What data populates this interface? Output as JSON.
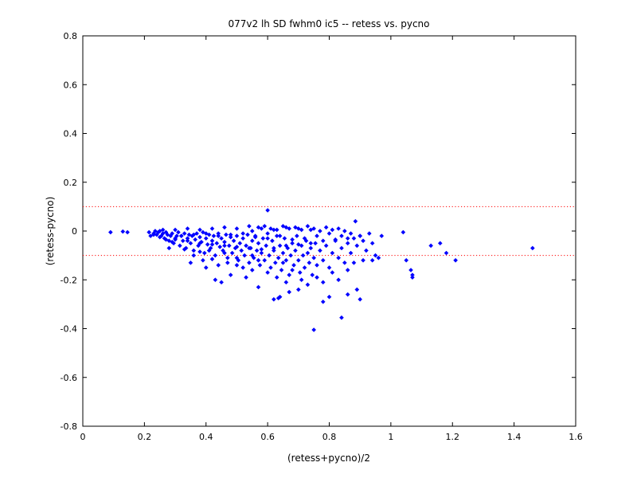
{
  "chart_data": {
    "type": "scatter",
    "title": "077v2 lh SD fwhm0 ic5 -- retess vs. pycno",
    "xlabel": "(retess+pycno)/2",
    "ylabel": "(retess-pycno)",
    "xlim": [
      0,
      1.6
    ],
    "ylim": [
      -0.8,
      0.8
    ],
    "xticks": [
      0,
      0.2,
      0.4,
      0.6,
      0.8,
      1,
      1.2,
      1.4,
      1.6
    ],
    "yticks": [
      -0.8,
      -0.6,
      -0.4,
      -0.2,
      0,
      0.2,
      0.4,
      0.6,
      0.8
    ],
    "xtick_labels": [
      "0",
      "0.2",
      "0.4",
      "0.6",
      "0.8",
      "1",
      "1.2",
      "1.4",
      "1.6"
    ],
    "ytick_labels": [
      "-0.8",
      "-0.6",
      "-0.4",
      "-0.2",
      "0",
      "0.2",
      "0.4",
      "0.6",
      "0.8"
    ],
    "grid": false,
    "reference_lines": [
      0.1,
      -0.1
    ],
    "colors": {
      "points": "#0000ff",
      "reference_lines": "#ff0000",
      "axes": "#000000"
    },
    "series": [
      {
        "marker": "diamond",
        "points": [
          [
            0.09,
            -0.005
          ],
          [
            0.13,
            -0.002
          ],
          [
            0.145,
            -0.005
          ],
          [
            0.215,
            -0.005
          ],
          [
            0.22,
            -0.02
          ],
          [
            0.23,
            -0.01
          ],
          [
            0.235,
            0.0
          ],
          [
            0.24,
            -0.015
          ],
          [
            0.245,
            -0.005
          ],
          [
            0.25,
            0.0
          ],
          [
            0.255,
            -0.02
          ],
          [
            0.26,
            -0.01
          ],
          [
            0.265,
            -0.03
          ],
          [
            0.27,
            -0.005
          ],
          [
            0.275,
            -0.015
          ],
          [
            0.28,
            -0.04
          ],
          [
            0.285,
            -0.02
          ],
          [
            0.29,
            -0.01
          ],
          [
            0.295,
            -0.05
          ],
          [
            0.3,
            -0.03
          ],
          [
            0.305,
            -0.02
          ],
          [
            0.31,
            -0.005
          ],
          [
            0.315,
            -0.06
          ],
          [
            0.32,
            -0.02
          ],
          [
            0.325,
            -0.04
          ],
          [
            0.33,
            -0.01
          ],
          [
            0.335,
            -0.07
          ],
          [
            0.34,
            -0.03
          ],
          [
            0.345,
            -0.015
          ],
          [
            0.35,
            -0.05
          ],
          [
            0.355,
            -0.02
          ],
          [
            0.36,
            -0.08
          ],
          [
            0.365,
            -0.035
          ],
          [
            0.37,
            -0.01
          ],
          [
            0.375,
            -0.06
          ],
          [
            0.38,
            -0.025
          ],
          [
            0.385,
            -0.045
          ],
          [
            0.39,
            -0.005
          ],
          [
            0.395,
            -0.09
          ],
          [
            0.4,
            -0.03
          ],
          [
            0.405,
            -0.055
          ],
          [
            0.41,
            -0.015
          ],
          [
            0.415,
            -0.07
          ],
          [
            0.42,
            -0.04
          ],
          [
            0.425,
            -0.02
          ],
          [
            0.43,
            -0.1
          ],
          [
            0.435,
            -0.05
          ],
          [
            0.44,
            -0.01
          ],
          [
            0.445,
            -0.065
          ],
          [
            0.45,
            -0.03
          ],
          [
            0.455,
            -0.08
          ],
          [
            0.46,
            -0.045
          ],
          [
            0.465,
            -0.015
          ],
          [
            0.47,
            -0.11
          ],
          [
            0.475,
            -0.06
          ],
          [
            0.48,
            -0.025
          ],
          [
            0.485,
            -0.09
          ],
          [
            0.49,
            -0.04
          ],
          [
            0.495,
            -0.07
          ],
          [
            0.5,
            -0.02
          ],
          [
            0.505,
            -0.12
          ],
          [
            0.51,
            -0.05
          ],
          [
            0.515,
            -0.08
          ],
          [
            0.52,
            -0.03
          ],
          [
            0.525,
            -0.1
          ],
          [
            0.53,
            -0.06
          ],
          [
            0.535,
            -0.015
          ],
          [
            0.54,
            -0.13
          ],
          [
            0.545,
            -0.07
          ],
          [
            0.55,
            -0.04
          ],
          [
            0.555,
            -0.11
          ],
          [
            0.56,
            -0.02
          ],
          [
            0.565,
            -0.08
          ],
          [
            0.57,
            -0.05
          ],
          [
            0.575,
            -0.14
          ],
          [
            0.58,
            -0.09
          ],
          [
            0.585,
            -0.03
          ],
          [
            0.59,
            -0.12
          ],
          [
            0.595,
            -0.06
          ],
          [
            0.6,
            -0.01
          ],
          [
            0.605,
            -0.1
          ],
          [
            0.61,
            -0.15
          ],
          [
            0.615,
            -0.04
          ],
          [
            0.62,
            -0.08
          ],
          [
            0.625,
            -0.13
          ],
          [
            0.63,
            -0.02
          ],
          [
            0.635,
            -0.11
          ],
          [
            0.64,
            -0.06
          ],
          [
            0.645,
            -0.16
          ],
          [
            0.65,
            -0.09
          ],
          [
            0.655,
            -0.03
          ],
          [
            0.66,
            -0.12
          ],
          [
            0.665,
            -0.07
          ],
          [
            0.67,
            -0.18
          ],
          [
            0.675,
            -0.1
          ],
          [
            0.68,
            -0.05
          ],
          [
            0.685,
            -0.14
          ],
          [
            0.69,
            -0.08
          ],
          [
            0.695,
            -0.02
          ],
          [
            0.7,
            -0.12
          ],
          [
            0.705,
            -0.17
          ],
          [
            0.71,
            -0.06
          ],
          [
            0.715,
            -0.1
          ],
          [
            0.72,
            -0.15
          ],
          [
            0.725,
            -0.04
          ],
          [
            0.73,
            -0.09
          ],
          [
            0.735,
            -0.13
          ],
          [
            0.74,
            -0.07
          ],
          [
            0.745,
            -0.18
          ],
          [
            0.75,
            -0.11
          ],
          [
            0.755,
            -0.05
          ],
          [
            0.76,
            -0.14
          ],
          [
            0.77,
            -0.08
          ],
          [
            0.78,
            -0.12
          ],
          [
            0.79,
            -0.06
          ],
          [
            0.8,
            -0.15
          ],
          [
            0.81,
            -0.09
          ],
          [
            0.82,
            -0.04
          ],
          [
            0.83,
            -0.11
          ],
          [
            0.84,
            -0.07
          ],
          [
            0.85,
            -0.13
          ],
          [
            0.86,
            -0.05
          ],
          [
            0.87,
            -0.09
          ],
          [
            0.88,
            -0.03
          ],
          [
            0.89,
            -0.06
          ],
          [
            0.9,
            -0.02
          ],
          [
            0.91,
            -0.04
          ],
          [
            0.92,
            -0.08
          ],
          [
            0.93,
            -0.01
          ],
          [
            0.94,
            -0.05
          ],
          [
            0.95,
            -0.1
          ],
          [
            0.26,
            0.005
          ],
          [
            0.3,
            0.005
          ],
          [
            0.34,
            0.01
          ],
          [
            0.38,
            0.005
          ],
          [
            0.42,
            0.01
          ],
          [
            0.46,
            0.015
          ],
          [
            0.5,
            0.01
          ],
          [
            0.54,
            0.02
          ],
          [
            0.58,
            0.01
          ],
          [
            0.62,
            0.005
          ],
          [
            0.66,
            0.015
          ],
          [
            0.7,
            0.01
          ],
          [
            0.74,
            0.005
          ],
          [
            0.32,
            -0.02
          ],
          [
            0.36,
            -0.015
          ],
          [
            0.4,
            -0.01
          ],
          [
            0.44,
            -0.02
          ],
          [
            0.48,
            -0.015
          ],
          [
            0.52,
            -0.01
          ],
          [
            0.56,
            -0.025
          ],
          [
            0.6,
            -0.03
          ],
          [
            0.64,
            -0.02
          ],
          [
            0.68,
            -0.035
          ],
          [
            0.72,
            -0.03
          ],
          [
            0.76,
            -0.02
          ],
          [
            0.8,
            -0.01
          ],
          [
            0.84,
            -0.02
          ],
          [
            0.3,
            -0.035
          ],
          [
            0.34,
            -0.04
          ],
          [
            0.38,
            -0.05
          ],
          [
            0.42,
            -0.055
          ],
          [
            0.46,
            -0.06
          ],
          [
            0.5,
            -0.065
          ],
          [
            0.54,
            -0.07
          ],
          [
            0.58,
            -0.075
          ],
          [
            0.62,
            -0.07
          ],
          [
            0.66,
            -0.06
          ],
          [
            0.7,
            -0.055
          ],
          [
            0.74,
            -0.05
          ],
          [
            0.78,
            -0.04
          ],
          [
            0.82,
            -0.035
          ],
          [
            0.86,
            -0.03
          ],
          [
            0.9,
            -0.02
          ],
          [
            0.28,
            -0.07
          ],
          [
            0.36,
            -0.1
          ],
          [
            0.39,
            -0.12
          ],
          [
            0.41,
            -0.08
          ],
          [
            0.44,
            -0.14
          ],
          [
            0.47,
            -0.13
          ],
          [
            0.5,
            -0.11
          ],
          [
            0.52,
            -0.15
          ],
          [
            0.55,
            -0.16
          ],
          [
            0.57,
            -0.12
          ],
          [
            0.6,
            -0.17
          ],
          [
            0.63,
            -0.19
          ],
          [
            0.66,
            -0.21
          ],
          [
            0.68,
            -0.16
          ],
          [
            0.71,
            -0.2
          ],
          [
            0.73,
            -0.22
          ],
          [
            0.76,
            -0.19
          ],
          [
            0.78,
            -0.21
          ],
          [
            0.81,
            -0.17
          ],
          [
            0.83,
            -0.2
          ],
          [
            0.86,
            -0.16
          ],
          [
            0.88,
            -0.13
          ],
          [
            0.91,
            -0.12
          ],
          [
            0.35,
            -0.13
          ],
          [
            0.4,
            -0.15
          ],
          [
            0.43,
            -0.2
          ],
          [
            0.45,
            -0.21
          ],
          [
            0.48,
            -0.18
          ],
          [
            0.53,
            -0.19
          ],
          [
            0.57,
            -0.23
          ],
          [
            0.62,
            -0.28
          ],
          [
            0.635,
            -0.275
          ],
          [
            0.64,
            -0.27
          ],
          [
            0.67,
            -0.25
          ],
          [
            0.7,
            -0.24
          ],
          [
            0.78,
            -0.29
          ],
          [
            0.8,
            -0.27
          ],
          [
            0.84,
            -0.355
          ],
          [
            0.86,
            -0.26
          ],
          [
            0.89,
            -0.24
          ],
          [
            0.9,
            -0.28
          ],
          [
            0.75,
            -0.405
          ],
          [
            0.6,
            0.085
          ],
          [
            0.885,
            0.04
          ],
          [
            0.97,
            -0.02
          ],
          [
            1.04,
            -0.005
          ],
          [
            1.05,
            -0.12
          ],
          [
            1.065,
            -0.16
          ],
          [
            1.07,
            -0.18
          ],
          [
            1.07,
            -0.19
          ],
          [
            1.13,
            -0.06
          ],
          [
            1.16,
            -0.05
          ],
          [
            1.18,
            -0.09
          ],
          [
            1.21,
            -0.12
          ],
          [
            1.46,
            -0.07
          ],
          [
            0.96,
            -0.11
          ],
          [
            0.94,
            -0.12
          ],
          [
            0.65,
            -0.13
          ],
          [
            0.55,
            -0.1
          ],
          [
            0.5,
            -0.14
          ],
          [
            0.46,
            -0.09
          ],
          [
            0.42,
            -0.115
          ],
          [
            0.38,
            -0.085
          ],
          [
            0.33,
            -0.075
          ],
          [
            0.29,
            -0.045
          ],
          [
            0.27,
            -0.035
          ],
          [
            0.25,
            -0.025
          ],
          [
            0.23,
            -0.015
          ],
          [
            0.55,
            0.0
          ],
          [
            0.57,
            0.015
          ],
          [
            0.59,
            0.02
          ],
          [
            0.61,
            0.01
          ],
          [
            0.63,
            0.005
          ],
          [
            0.65,
            0.02
          ],
          [
            0.67,
            0.01
          ],
          [
            0.69,
            0.015
          ],
          [
            0.71,
            0.005
          ],
          [
            0.73,
            0.02
          ],
          [
            0.75,
            0.01
          ],
          [
            0.77,
            0.0
          ],
          [
            0.79,
            0.015
          ],
          [
            0.81,
            0.005
          ],
          [
            0.83,
            0.01
          ],
          [
            0.85,
            0.0
          ],
          [
            0.87,
            -0.01
          ]
        ]
      }
    ]
  }
}
